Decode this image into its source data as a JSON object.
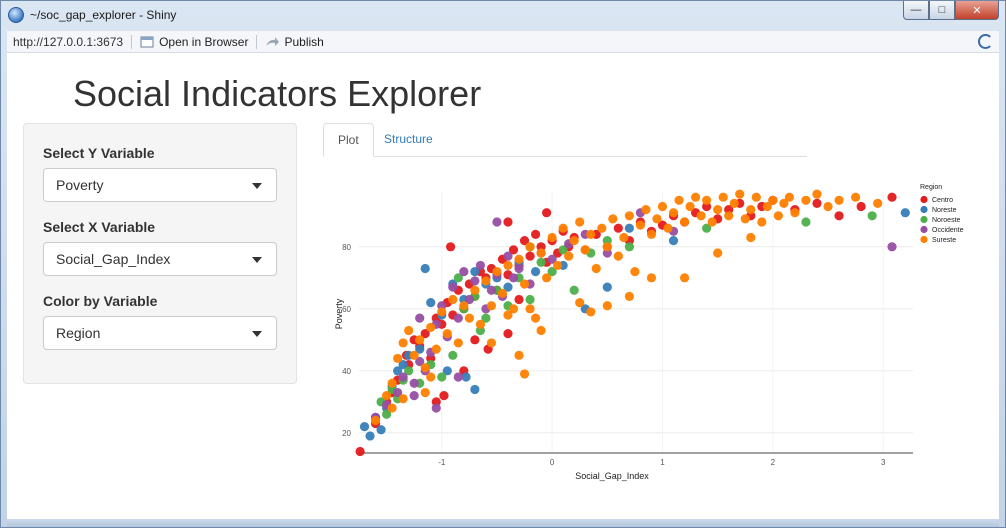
{
  "window": {
    "title": "~/soc_gap_explorer - Shiny",
    "url": "http://127.0.0.1:3673",
    "open_browser_label": "Open in Browser",
    "publish_label": "Publish"
  },
  "page": {
    "title": "Social Indicators Explorer"
  },
  "sidebar": {
    "y_label": "Select Y Variable",
    "y_value": "Poverty",
    "x_label": "Select X Variable",
    "x_value": "Social_Gap_Index",
    "color_label": "Color by Variable",
    "color_value": "Region"
  },
  "tabs": [
    {
      "label": "Plot",
      "active": true
    },
    {
      "label": "Structure",
      "active": false
    }
  ],
  "chart_data": {
    "type": "scatter",
    "xlabel": "Social_Gap_Index",
    "ylabel": "Poverty",
    "xlim": [
      -1.75,
      3.27
    ],
    "ylim": [
      13.5,
      98
    ],
    "x_ticks": [
      "-1",
      "0",
      "1",
      "2",
      "3"
    ],
    "y_ticks": [
      "20",
      "40",
      "60",
      "80"
    ],
    "legend_title": "Region",
    "legend_position": "right",
    "grid": true,
    "series": [
      {
        "name": "Centro",
        "color": "#e41a1c",
        "points": [
          [
            -1.74,
            14
          ],
          [
            -1.6,
            23
          ],
          [
            -1.5,
            30
          ],
          [
            -1.45,
            33
          ],
          [
            -1.4,
            37
          ],
          [
            -1.32,
            45
          ],
          [
            -1.25,
            50
          ],
          [
            -1.2,
            48
          ],
          [
            -1.15,
            52
          ],
          [
            -1.1,
            44
          ],
          [
            -1.05,
            57
          ],
          [
            -1,
            55
          ],
          [
            -0.95,
            62
          ],
          [
            -0.9,
            58
          ],
          [
            -0.85,
            66
          ],
          [
            -0.8,
            60
          ],
          [
            -0.75,
            68
          ],
          [
            -0.7,
            64
          ],
          [
            -0.65,
            72
          ],
          [
            -0.6,
            70
          ],
          [
            -0.55,
            73
          ],
          [
            -0.5,
            66
          ],
          [
            -0.45,
            76
          ],
          [
            -0.4,
            71
          ],
          [
            -0.35,
            79
          ],
          [
            -0.3,
            74
          ],
          [
            -0.25,
            82
          ],
          [
            -0.2,
            77
          ],
          [
            -0.15,
            84
          ],
          [
            -0.1,
            80
          ],
          [
            -0.05,
            75
          ],
          [
            0,
            82
          ],
          [
            0.05,
            78
          ],
          [
            0.1,
            85
          ],
          [
            0.15,
            80
          ],
          [
            0.2,
            83
          ],
          [
            0.3,
            79
          ],
          [
            0.4,
            84
          ],
          [
            0.5,
            80
          ],
          [
            0.6,
            86
          ],
          [
            0.7,
            82
          ],
          [
            0.8,
            88
          ],
          [
            0.9,
            85
          ],
          [
            1,
            87
          ],
          [
            1.1,
            90
          ],
          [
            1.2,
            88
          ],
          [
            1.3,
            91
          ],
          [
            1.4,
            93
          ],
          [
            1.5,
            89
          ],
          [
            1.6,
            92
          ],
          [
            1.7,
            94
          ],
          [
            1.8,
            90
          ],
          [
            1.9,
            93
          ],
          [
            2,
            95
          ],
          [
            2.2,
            92
          ],
          [
            2.4,
            94
          ],
          [
            2.6,
            90
          ],
          [
            2.8,
            93
          ],
          [
            3.08,
            96
          ],
          [
            -0.98,
            32
          ],
          [
            -0.8,
            40
          ],
          [
            -0.7,
            50
          ],
          [
            -0.4,
            52
          ],
          [
            -0.3,
            63
          ],
          [
            -1.3,
            42
          ],
          [
            -1.05,
            30
          ],
          [
            -0.58,
            47
          ],
          [
            -0.92,
            80
          ],
          [
            -0.4,
            88
          ],
          [
            -0.05,
            91
          ]
        ]
      },
      {
        "name": "Noreste",
        "color": "#377eb8",
        "points": [
          [
            -1.7,
            22
          ],
          [
            -1.65,
            19
          ],
          [
            -1.6,
            25
          ],
          [
            -1.55,
            21
          ],
          [
            -1.5,
            28
          ],
          [
            -1.45,
            35
          ],
          [
            -1.4,
            40
          ],
          [
            -1.35,
            42
          ],
          [
            -1.3,
            45
          ],
          [
            -1.2,
            47
          ],
          [
            -1.1,
            62
          ],
          [
            -1,
            58
          ],
          [
            -0.9,
            68
          ],
          [
            -0.8,
            63
          ],
          [
            -0.7,
            72
          ],
          [
            -0.6,
            68
          ],
          [
            -0.5,
            70
          ],
          [
            -0.4,
            67
          ],
          [
            -0.3,
            75
          ],
          [
            -0.15,
            72
          ],
          [
            0.1,
            74
          ],
          [
            0.3,
            60
          ],
          [
            0.5,
            67
          ],
          [
            0.7,
            86
          ],
          [
            1.1,
            82
          ],
          [
            -1.15,
            73
          ],
          [
            -0.78,
            38
          ],
          [
            -0.7,
            34
          ],
          [
            -0.95,
            40
          ],
          [
            3.2,
            91
          ]
        ]
      },
      {
        "name": "Noroeste",
        "color": "#4daf4a",
        "points": [
          [
            -1.55,
            30
          ],
          [
            -1.5,
            26
          ],
          [
            -1.45,
            34
          ],
          [
            -1.4,
            31
          ],
          [
            -1.35,
            37
          ],
          [
            -1.3,
            40
          ],
          [
            -1.2,
            36
          ],
          [
            -1.1,
            42
          ],
          [
            -1,
            38
          ],
          [
            -0.9,
            45
          ],
          [
            -0.8,
            60
          ],
          [
            -0.7,
            64
          ],
          [
            -0.6,
            57
          ],
          [
            -0.5,
            66
          ],
          [
            -0.4,
            61
          ],
          [
            -0.3,
            70
          ],
          [
            -0.2,
            63
          ],
          [
            -0.1,
            75
          ],
          [
            0,
            72
          ],
          [
            0.1,
            79
          ],
          [
            0.2,
            66
          ],
          [
            0.35,
            78
          ],
          [
            0.5,
            82
          ],
          [
            0.7,
            80
          ],
          [
            1.4,
            86
          ],
          [
            2.3,
            88
          ],
          [
            2.9,
            90
          ],
          [
            -0.85,
            70
          ],
          [
            -0.65,
            53
          ],
          [
            -0.2,
            80
          ]
        ]
      },
      {
        "name": "Occidente",
        "color": "#984ea3",
        "points": [
          [
            -1.6,
            25
          ],
          [
            -1.5,
            29
          ],
          [
            -1.4,
            33
          ],
          [
            -1.35,
            38
          ],
          [
            -1.25,
            36
          ],
          [
            -1.2,
            43
          ],
          [
            -1.15,
            40
          ],
          [
            -1.1,
            46
          ],
          [
            -1.05,
            55
          ],
          [
            -1,
            61
          ],
          [
            -0.95,
            51
          ],
          [
            -0.9,
            67
          ],
          [
            -0.85,
            57
          ],
          [
            -0.8,
            72
          ],
          [
            -0.75,
            63
          ],
          [
            -0.7,
            69
          ],
          [
            -0.65,
            74
          ],
          [
            -0.6,
            60
          ],
          [
            -0.55,
            66
          ],
          [
            -0.5,
            71
          ],
          [
            -0.45,
            64
          ],
          [
            -0.4,
            77
          ],
          [
            -0.35,
            70
          ],
          [
            -0.3,
            73
          ],
          [
            -0.2,
            68
          ],
          [
            -0.1,
            78
          ],
          [
            0,
            76
          ],
          [
            0.15,
            81
          ],
          [
            0.3,
            84
          ],
          [
            0.5,
            78
          ],
          [
            0.8,
            91
          ],
          [
            1.1,
            85
          ],
          [
            3.08,
            80
          ],
          [
            -1.05,
            28
          ],
          [
            -0.85,
            38
          ],
          [
            -1.2,
            57
          ],
          [
            -0.5,
            88
          ],
          [
            -1.25,
            32
          ]
        ]
      },
      {
        "name": "Sureste",
        "color": "#ff7f00",
        "points": [
          [
            -1.6,
            24
          ],
          [
            -1.5,
            32
          ],
          [
            -1.45,
            28
          ],
          [
            -1.4,
            44
          ],
          [
            -1.35,
            49
          ],
          [
            -1.3,
            53
          ],
          [
            -1.25,
            45
          ],
          [
            -1.2,
            50
          ],
          [
            -1.15,
            41
          ],
          [
            -1.1,
            54
          ],
          [
            -1.05,
            47
          ],
          [
            -1,
            59
          ],
          [
            -0.95,
            52
          ],
          [
            -0.9,
            63
          ],
          [
            -0.85,
            49
          ],
          [
            -0.8,
            61
          ],
          [
            -0.75,
            57
          ],
          [
            -0.7,
            66
          ],
          [
            -0.65,
            55
          ],
          [
            -0.6,
            69
          ],
          [
            -0.55,
            61
          ],
          [
            -0.5,
            72
          ],
          [
            -0.45,
            65
          ],
          [
            -0.4,
            74
          ],
          [
            -0.35,
            60
          ],
          [
            -0.3,
            76
          ],
          [
            -0.25,
            68
          ],
          [
            -0.2,
            80
          ],
          [
            -0.15,
            57
          ],
          [
            -0.1,
            78
          ],
          [
            -0.05,
            70
          ],
          [
            0,
            83
          ],
          [
            0.05,
            74
          ],
          [
            0.1,
            86
          ],
          [
            0.15,
            77
          ],
          [
            0.2,
            82
          ],
          [
            0.25,
            88
          ],
          [
            0.3,
            79
          ],
          [
            0.35,
            84
          ],
          [
            0.4,
            73
          ],
          [
            0.45,
            86
          ],
          [
            0.5,
            80
          ],
          [
            0.55,
            89
          ],
          [
            0.6,
            77
          ],
          [
            0.65,
            83
          ],
          [
            0.7,
            90
          ],
          [
            0.75,
            72
          ],
          [
            0.8,
            87
          ],
          [
            0.85,
            92
          ],
          [
            0.9,
            84
          ],
          [
            0.95,
            89
          ],
          [
            1,
            93
          ],
          [
            1.05,
            86
          ],
          [
            1.1,
            91
          ],
          [
            1.15,
            95
          ],
          [
            1.2,
            88
          ],
          [
            1.25,
            93
          ],
          [
            1.3,
            96
          ],
          [
            1.35,
            90
          ],
          [
            1.4,
            95
          ],
          [
            1.45,
            88
          ],
          [
            1.5,
            92
          ],
          [
            1.55,
            96
          ],
          [
            1.6,
            90
          ],
          [
            1.65,
            94
          ],
          [
            1.7,
            97
          ],
          [
            1.75,
            89
          ],
          [
            1.8,
            92
          ],
          [
            1.85,
            96
          ],
          [
            1.9,
            88
          ],
          [
            1.95,
            93
          ],
          [
            2,
            95
          ],
          [
            2.05,
            90
          ],
          [
            2.1,
            94
          ],
          [
            2.15,
            96
          ],
          [
            2.2,
            91
          ],
          [
            2.3,
            95
          ],
          [
            2.4,
            97
          ],
          [
            2.5,
            93
          ],
          [
            2.6,
            95
          ],
          [
            2.75,
            96
          ],
          [
            2.95,
            94
          ],
          [
            0.25,
            62
          ],
          [
            -0.1,
            53
          ],
          [
            -0.2,
            60
          ],
          [
            -0.25,
            39
          ],
          [
            -0.4,
            58
          ],
          [
            -0.55,
            49
          ],
          [
            -1.45,
            36
          ],
          [
            -1.35,
            31
          ],
          [
            -1.15,
            33
          ],
          [
            -1.1,
            38
          ],
          [
            -0.3,
            45
          ],
          [
            0.5,
            61
          ],
          [
            0.7,
            64
          ],
          [
            1.2,
            70
          ],
          [
            1.5,
            78
          ],
          [
            1.8,
            83
          ],
          [
            0.9,
            70
          ],
          [
            0.35,
            59
          ]
        ]
      }
    ]
  }
}
